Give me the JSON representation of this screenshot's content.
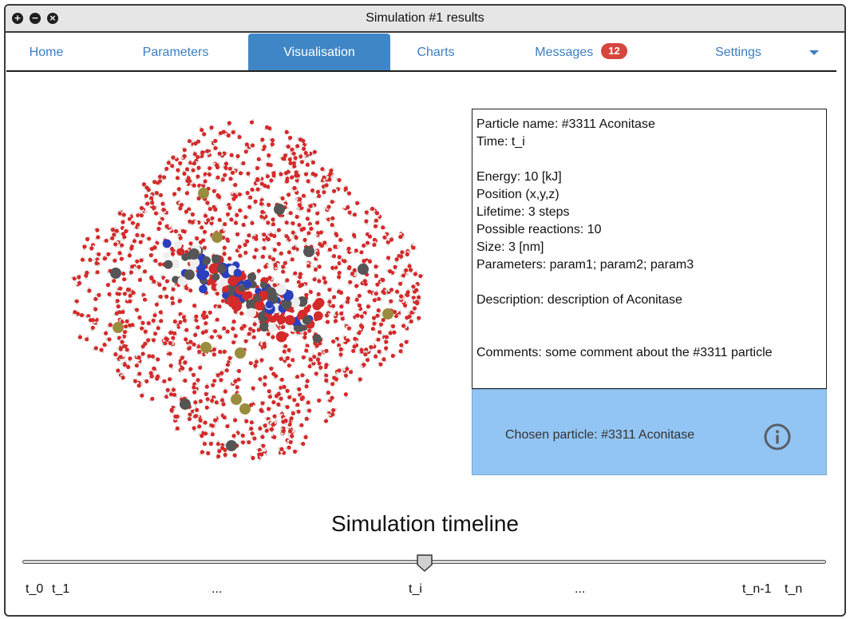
{
  "window": {
    "title": "Simulation #1 results",
    "controls": [
      "plus-icon",
      "minus-icon",
      "close-icon"
    ]
  },
  "tabs": [
    {
      "label": "Home"
    },
    {
      "label": "Parameters"
    },
    {
      "label": "Visualisation",
      "active": true
    },
    {
      "label": "Charts"
    },
    {
      "label": "Messages",
      "badge": "12"
    },
    {
      "label": "Settings"
    }
  ],
  "particle": {
    "name_line": "Particle name: #3311 Aconitase",
    "time_line": "Time: t_i",
    "energy_line": "Energy: 10 [kJ]",
    "position_line": "Position (x,y,z)",
    "lifetime_line": "Lifetime: 3 steps",
    "reactions_line": "Possible reactions: 10",
    "size_line": "Size: 3 [nm]",
    "parameters_line": "Parameters: param1; param2; param3",
    "description_line": "Description: description of Aconitase",
    "comments_line": "Comments: some comment about the #3311 particle"
  },
  "chosen": {
    "label": "Chosen particle: #3311  Aconitase",
    "icon": "info-icon"
  },
  "timeline": {
    "title": "Simulation timeline",
    "position": 0.5,
    "labels": [
      "t_0",
      "t_1",
      "...",
      "t_i",
      "...",
      "t_n-1",
      "t_n"
    ]
  },
  "colors": {
    "accent": "#3f86c6",
    "tab_text": "#3a7ec0",
    "badge": "#d6463e",
    "panel": "#92c5f3",
    "oxygen": "#d42a2a",
    "hydrogen": "#f2f2f2",
    "carbon": "#555555",
    "nitrogen": "#2b3fbf",
    "sulfur": "#9a8c3c"
  }
}
